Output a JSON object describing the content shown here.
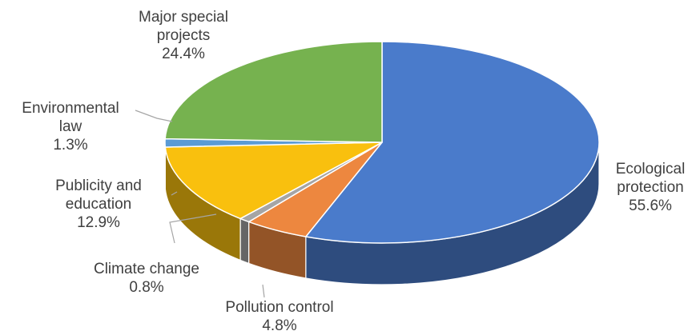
{
  "chart_data": {
    "type": "pie",
    "style": "3d",
    "title": "",
    "slices": [
      {
        "label_lines": [
          "Ecological",
          "protection"
        ],
        "value_label": "55.6%",
        "value": 55.6,
        "color": "#4a7bcb"
      },
      {
        "label_lines": [
          "Pollution control"
        ],
        "value_label": "4.8%",
        "value": 4.8,
        "color": "#ed873f"
      },
      {
        "label_lines": [
          "Climate change"
        ],
        "value_label": "0.8%",
        "value": 0.8,
        "color": "#a5a5a5"
      },
      {
        "label_lines": [
          "Publicity and",
          "education"
        ],
        "value_label": "12.9%",
        "value": 12.9,
        "color": "#f9c00e"
      },
      {
        "label_lines": [
          "Environmental",
          "law"
        ],
        "value_label": "1.3%",
        "value": 1.3,
        "color": "#5b9bd5"
      },
      {
        "label_lines": [
          "Major special",
          "projects"
        ],
        "value_label": "24.4%",
        "value": 24.4,
        "color": "#76b24f"
      }
    ],
    "legend": "none"
  }
}
